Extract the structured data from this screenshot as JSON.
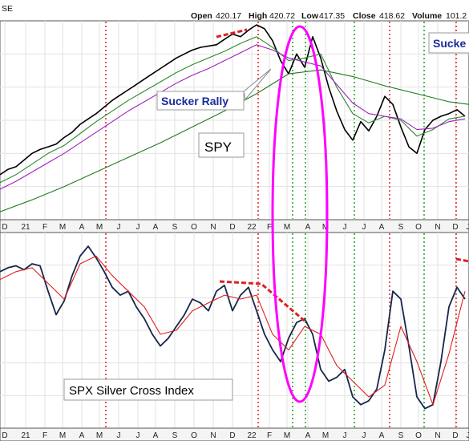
{
  "header": {
    "corner_label": "SE",
    "open_label": "Open",
    "open_value": "420.17",
    "high_label": "High",
    "high_value": "420.72",
    "low_label": "Low",
    "low_value": "417.35",
    "close_label": "Close",
    "close_value": "418.62",
    "volume_label": "Volume",
    "volume_value": "101.2"
  },
  "annotations": {
    "sucker_rally": "Sucker Rally",
    "sucker_right": "Sucke",
    "spy_label": "SPY",
    "index_label": "SPX Silver Cross Index"
  },
  "colors": {
    "price": "#000000",
    "ema_short": "#2a8a2a",
    "ema_mid": "#a020c0",
    "ema_long": "#1e7a1e",
    "index": "#16264a",
    "index_signal": "#e02020",
    "red_dotted": "#dd1111",
    "green_dotted": "#119911",
    "ellipse": "#ff00ff",
    "label_text": "#1b2b9c",
    "dashed_red": "#e02020"
  },
  "chart_data": [
    {
      "type": "line",
      "title": "SPY",
      "x_tick_labels": [
        "D",
        "21",
        "F",
        "M",
        "A",
        "M",
        "J",
        "J",
        "A",
        "S",
        "O",
        "N",
        "D",
        "22",
        "F",
        "M",
        "A",
        "M",
        "J",
        "J",
        "A",
        "S",
        "O",
        "N",
        "D",
        "J"
      ],
      "series": [
        {
          "x": [
            0,
            10,
            20,
            30,
            40,
            50,
            60,
            70,
            80,
            90,
            100,
            110,
            120,
            130,
            140,
            150,
            160,
            170,
            180,
            190,
            200,
            210,
            220,
            230,
            240,
            250,
            260,
            270,
            280,
            290,
            300,
            310,
            320,
            330,
            340,
            350,
            360,
            370,
            380,
            390,
            400,
            410,
            420,
            430,
            440,
            450,
            460,
            470,
            480,
            490,
            500,
            510,
            520,
            530,
            540,
            550,
            560,
            570,
            580
          ],
          "values": [
            364,
            368,
            370,
            375,
            380,
            383,
            385,
            387,
            392,
            396,
            402,
            406,
            410,
            415,
            420,
            424,
            428,
            432,
            436,
            440,
            444,
            448,
            452,
            455,
            458,
            460,
            461,
            462,
            466,
            470,
            468,
            473,
            477,
            474,
            465,
            450,
            440,
            455,
            445,
            468,
            452,
            430,
            412,
            398,
            390,
            404,
            397,
            408,
            423,
            417,
            400,
            385,
            380,
            398,
            405,
            408,
            410,
            413,
            408
          ]
        },
        {
          "x": [
            0,
            20,
            40,
            60,
            80,
            100,
            120,
            140,
            160,
            180,
            200,
            220,
            240,
            260,
            280,
            300,
            320,
            340,
            360,
            380,
            400,
            420,
            440,
            460,
            480,
            500,
            520,
            540,
            560,
            580
          ],
          "values": [
            358,
            364,
            372,
            380,
            386,
            395,
            404,
            412,
            420,
            427,
            434,
            441,
            447,
            452,
            457,
            463,
            468,
            460,
            450,
            452,
            455,
            430,
            410,
            403,
            408,
            405,
            393,
            398,
            406,
            408
          ]
        },
        {
          "x": [
            0,
            20,
            40,
            60,
            80,
            100,
            120,
            140,
            160,
            180,
            200,
            220,
            240,
            260,
            280,
            300,
            320,
            340,
            360,
            380,
            400,
            420,
            440,
            460,
            480,
            500,
            520,
            540,
            560,
            580
          ],
          "values": [
            353,
            359,
            366,
            373,
            380,
            388,
            396,
            404,
            412,
            419,
            426,
            433,
            439,
            444,
            450,
            456,
            462,
            458,
            452,
            449,
            446,
            432,
            418,
            410,
            408,
            406,
            398,
            399,
            404,
            406
          ]
        },
        {
          "x": [
            0,
            40,
            80,
            120,
            160,
            200,
            240,
            280,
            320,
            360,
            400,
            440,
            480,
            520,
            560,
            585
          ],
          "values": [
            336,
            345,
            355,
            366,
            377,
            388,
            400,
            412,
            425,
            440,
            443,
            438,
            431,
            425,
            419,
            417
          ]
        }
      ],
      "ylim": [
        330,
        480
      ]
    },
    {
      "type": "line",
      "title": "SPX Silver Cross Index",
      "x_tick_labels": [
        "D",
        "21",
        "F",
        "M",
        "A",
        "M",
        "J",
        "J",
        "A",
        "S",
        "O",
        "N",
        "D",
        "22",
        "F",
        "M",
        "A",
        "M",
        "J",
        "J",
        "A",
        "S",
        "O",
        "N",
        "D",
        "J"
      ],
      "series": [
        {
          "x": [
            0,
            10,
            20,
            30,
            40,
            50,
            60,
            70,
            80,
            90,
            100,
            110,
            120,
            130,
            140,
            150,
            160,
            170,
            180,
            190,
            200,
            210,
            220,
            230,
            240,
            250,
            260,
            270,
            280,
            290,
            300,
            310,
            320,
            330,
            340,
            350,
            360,
            370,
            380,
            390,
            400,
            410,
            420,
            430,
            440,
            450,
            460,
            470,
            480,
            490,
            500,
            510,
            520,
            530,
            540,
            550,
            560,
            570,
            580
          ],
          "values": [
            80,
            82,
            83,
            81,
            84,
            83,
            70,
            58,
            65,
            78,
            88,
            93,
            87,
            80,
            72,
            68,
            70,
            62,
            56,
            48,
            42,
            46,
            52,
            58,
            66,
            64,
            60,
            70,
            73,
            60,
            68,
            72,
            60,
            48,
            40,
            34,
            46,
            54,
            56,
            48,
            30,
            24,
            26,
            30,
            16,
            12,
            14,
            20,
            40,
            70,
            66,
            42,
            16,
            10,
            12,
            34,
            62,
            72,
            66
          ]
        },
        {
          "x": [
            0,
            20,
            40,
            60,
            80,
            100,
            120,
            140,
            160,
            180,
            200,
            220,
            240,
            260,
            280,
            300,
            320,
            340,
            360,
            380,
            400,
            420,
            440,
            460,
            480,
            500,
            520,
            540,
            560,
            580
          ],
          "values": [
            76,
            80,
            82,
            74,
            66,
            84,
            88,
            78,
            70,
            62,
            48,
            50,
            60,
            64,
            68,
            66,
            68,
            48,
            40,
            52,
            48,
            32,
            24,
            16,
            22,
            52,
            34,
            12,
            38,
            70
          ]
        }
      ],
      "ylim": [
        0,
        100
      ]
    }
  ]
}
